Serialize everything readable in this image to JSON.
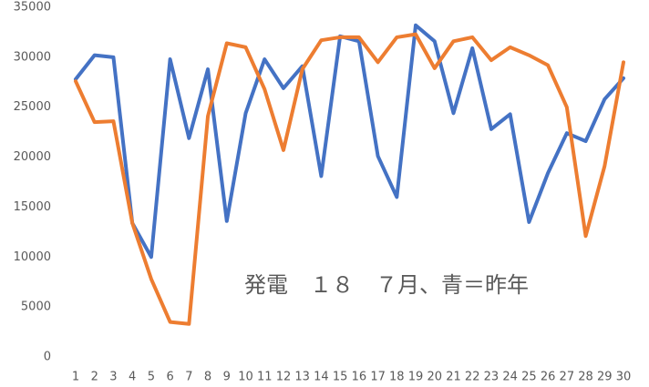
{
  "chart_data": {
    "type": "line",
    "annotation": "発電　１８　７月、青＝昨年",
    "categories": [
      1,
      2,
      3,
      4,
      5,
      6,
      7,
      8,
      9,
      10,
      11,
      12,
      13,
      14,
      15,
      16,
      17,
      18,
      19,
      20,
      21,
      22,
      23,
      24,
      25,
      26,
      27,
      28,
      29,
      30
    ],
    "series": [
      {
        "color": "#4472c4",
        "values": [
          27800,
          30200,
          30000,
          13400,
          10000,
          29800,
          21900,
          28800,
          13600,
          24400,
          29800,
          26900,
          29100,
          18100,
          32100,
          31600,
          20100,
          16000,
          33200,
          31600,
          24400,
          30900,
          22800,
          24300,
          13500,
          18400,
          22400,
          21600,
          25800,
          27900
        ]
      },
      {
        "color": "#ed7d31",
        "values": [
          27600,
          23500,
          23600,
          13400,
          7800,
          3500,
          3300,
          24100,
          31400,
          31000,
          26800,
          20700,
          28800,
          31700,
          32000,
          32000,
          29500,
          32000,
          32300,
          28900,
          31600,
          32000,
          29700,
          31000,
          30200,
          29200,
          25000,
          12100,
          19100,
          29500
        ]
      }
    ],
    "ylim": [
      0,
      35000
    ],
    "yticks": [
      0,
      5000,
      10000,
      15000,
      20000,
      25000,
      30000,
      35000
    ],
    "grid": false
  }
}
